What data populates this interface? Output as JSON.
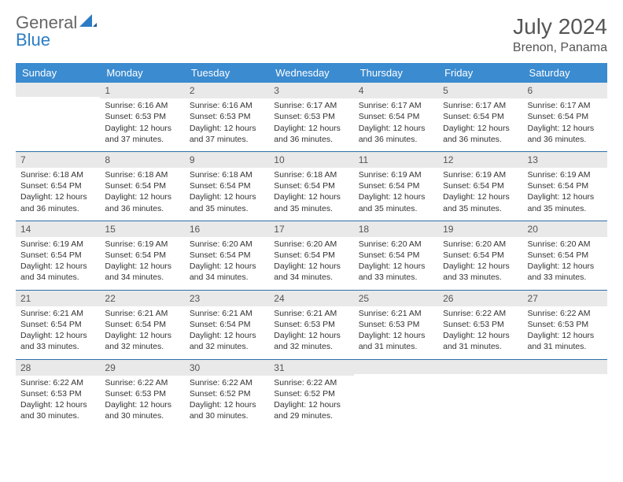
{
  "logo": {
    "text1": "General",
    "text2": "Blue"
  },
  "title": "July 2024",
  "location": "Brenon, Panama",
  "colors": {
    "header_bg": "#3b8bd0",
    "header_text": "#ffffff",
    "daynum_bg": "#e9e9e9",
    "sep": "#2f6fa8",
    "logo_gray": "#666666",
    "logo_blue": "#2b7cc4"
  },
  "weekdays": [
    "Sunday",
    "Monday",
    "Tuesday",
    "Wednesday",
    "Thursday",
    "Friday",
    "Saturday"
  ],
  "weeks": [
    [
      {
        "n": "",
        "sr": "",
        "ss": "",
        "dl": ""
      },
      {
        "n": "1",
        "sr": "Sunrise: 6:16 AM",
        "ss": "Sunset: 6:53 PM",
        "dl": "Daylight: 12 hours and 37 minutes."
      },
      {
        "n": "2",
        "sr": "Sunrise: 6:16 AM",
        "ss": "Sunset: 6:53 PM",
        "dl": "Daylight: 12 hours and 37 minutes."
      },
      {
        "n": "3",
        "sr": "Sunrise: 6:17 AM",
        "ss": "Sunset: 6:53 PM",
        "dl": "Daylight: 12 hours and 36 minutes."
      },
      {
        "n": "4",
        "sr": "Sunrise: 6:17 AM",
        "ss": "Sunset: 6:54 PM",
        "dl": "Daylight: 12 hours and 36 minutes."
      },
      {
        "n": "5",
        "sr": "Sunrise: 6:17 AM",
        "ss": "Sunset: 6:54 PM",
        "dl": "Daylight: 12 hours and 36 minutes."
      },
      {
        "n": "6",
        "sr": "Sunrise: 6:17 AM",
        "ss": "Sunset: 6:54 PM",
        "dl": "Daylight: 12 hours and 36 minutes."
      }
    ],
    [
      {
        "n": "7",
        "sr": "Sunrise: 6:18 AM",
        "ss": "Sunset: 6:54 PM",
        "dl": "Daylight: 12 hours and 36 minutes."
      },
      {
        "n": "8",
        "sr": "Sunrise: 6:18 AM",
        "ss": "Sunset: 6:54 PM",
        "dl": "Daylight: 12 hours and 36 minutes."
      },
      {
        "n": "9",
        "sr": "Sunrise: 6:18 AM",
        "ss": "Sunset: 6:54 PM",
        "dl": "Daylight: 12 hours and 35 minutes."
      },
      {
        "n": "10",
        "sr": "Sunrise: 6:18 AM",
        "ss": "Sunset: 6:54 PM",
        "dl": "Daylight: 12 hours and 35 minutes."
      },
      {
        "n": "11",
        "sr": "Sunrise: 6:19 AM",
        "ss": "Sunset: 6:54 PM",
        "dl": "Daylight: 12 hours and 35 minutes."
      },
      {
        "n": "12",
        "sr": "Sunrise: 6:19 AM",
        "ss": "Sunset: 6:54 PM",
        "dl": "Daylight: 12 hours and 35 minutes."
      },
      {
        "n": "13",
        "sr": "Sunrise: 6:19 AM",
        "ss": "Sunset: 6:54 PM",
        "dl": "Daylight: 12 hours and 35 minutes."
      }
    ],
    [
      {
        "n": "14",
        "sr": "Sunrise: 6:19 AM",
        "ss": "Sunset: 6:54 PM",
        "dl": "Daylight: 12 hours and 34 minutes."
      },
      {
        "n": "15",
        "sr": "Sunrise: 6:19 AM",
        "ss": "Sunset: 6:54 PM",
        "dl": "Daylight: 12 hours and 34 minutes."
      },
      {
        "n": "16",
        "sr": "Sunrise: 6:20 AM",
        "ss": "Sunset: 6:54 PM",
        "dl": "Daylight: 12 hours and 34 minutes."
      },
      {
        "n": "17",
        "sr": "Sunrise: 6:20 AM",
        "ss": "Sunset: 6:54 PM",
        "dl": "Daylight: 12 hours and 34 minutes."
      },
      {
        "n": "18",
        "sr": "Sunrise: 6:20 AM",
        "ss": "Sunset: 6:54 PM",
        "dl": "Daylight: 12 hours and 33 minutes."
      },
      {
        "n": "19",
        "sr": "Sunrise: 6:20 AM",
        "ss": "Sunset: 6:54 PM",
        "dl": "Daylight: 12 hours and 33 minutes."
      },
      {
        "n": "20",
        "sr": "Sunrise: 6:20 AM",
        "ss": "Sunset: 6:54 PM",
        "dl": "Daylight: 12 hours and 33 minutes."
      }
    ],
    [
      {
        "n": "21",
        "sr": "Sunrise: 6:21 AM",
        "ss": "Sunset: 6:54 PM",
        "dl": "Daylight: 12 hours and 33 minutes."
      },
      {
        "n": "22",
        "sr": "Sunrise: 6:21 AM",
        "ss": "Sunset: 6:54 PM",
        "dl": "Daylight: 12 hours and 32 minutes."
      },
      {
        "n": "23",
        "sr": "Sunrise: 6:21 AM",
        "ss": "Sunset: 6:54 PM",
        "dl": "Daylight: 12 hours and 32 minutes."
      },
      {
        "n": "24",
        "sr": "Sunrise: 6:21 AM",
        "ss": "Sunset: 6:53 PM",
        "dl": "Daylight: 12 hours and 32 minutes."
      },
      {
        "n": "25",
        "sr": "Sunrise: 6:21 AM",
        "ss": "Sunset: 6:53 PM",
        "dl": "Daylight: 12 hours and 31 minutes."
      },
      {
        "n": "26",
        "sr": "Sunrise: 6:22 AM",
        "ss": "Sunset: 6:53 PM",
        "dl": "Daylight: 12 hours and 31 minutes."
      },
      {
        "n": "27",
        "sr": "Sunrise: 6:22 AM",
        "ss": "Sunset: 6:53 PM",
        "dl": "Daylight: 12 hours and 31 minutes."
      }
    ],
    [
      {
        "n": "28",
        "sr": "Sunrise: 6:22 AM",
        "ss": "Sunset: 6:53 PM",
        "dl": "Daylight: 12 hours and 30 minutes."
      },
      {
        "n": "29",
        "sr": "Sunrise: 6:22 AM",
        "ss": "Sunset: 6:53 PM",
        "dl": "Daylight: 12 hours and 30 minutes."
      },
      {
        "n": "30",
        "sr": "Sunrise: 6:22 AM",
        "ss": "Sunset: 6:52 PM",
        "dl": "Daylight: 12 hours and 30 minutes."
      },
      {
        "n": "31",
        "sr": "Sunrise: 6:22 AM",
        "ss": "Sunset: 6:52 PM",
        "dl": "Daylight: 12 hours and 29 minutes."
      },
      {
        "n": "",
        "sr": "",
        "ss": "",
        "dl": ""
      },
      {
        "n": "",
        "sr": "",
        "ss": "",
        "dl": ""
      },
      {
        "n": "",
        "sr": "",
        "ss": "",
        "dl": ""
      }
    ]
  ]
}
